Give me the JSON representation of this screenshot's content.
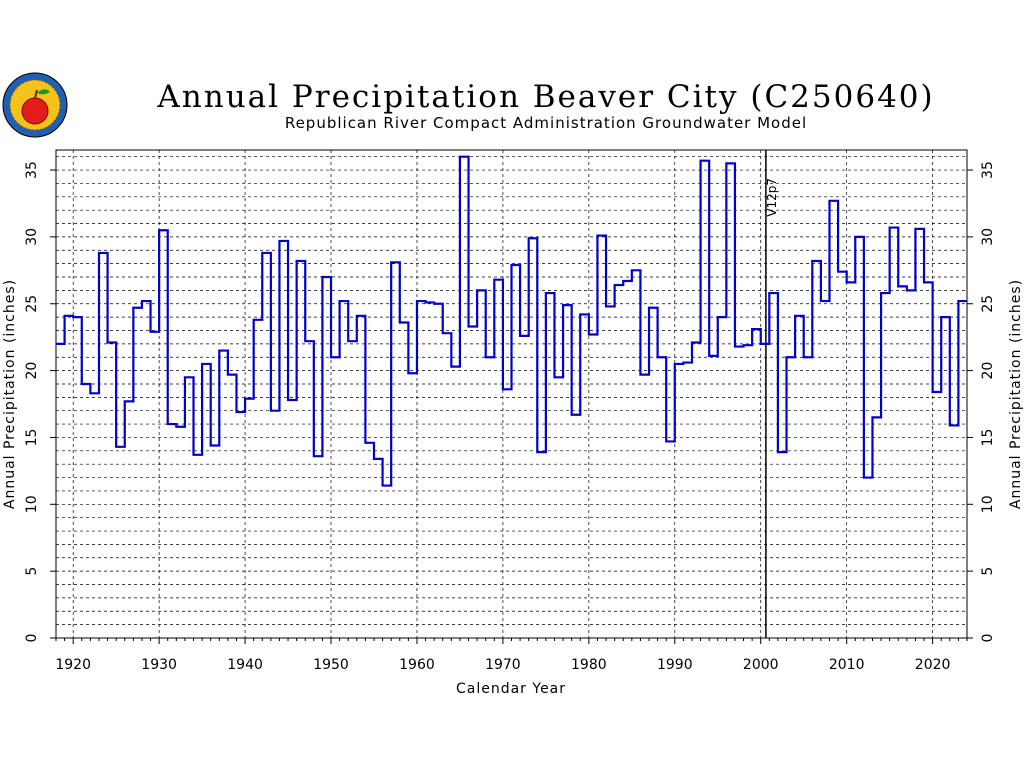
{
  "chart_data": {
    "type": "line",
    "step": true,
    "title": "Annual Precipitation Beaver City (C250640)",
    "subtitle": "Republican River Compact Administration Groundwater Model",
    "xlabel": "Calendar Year",
    "ylabel": "Annual Precipitation (inches)",
    "xlim": [
      1918,
      2024
    ],
    "ylim": [
      0,
      36.5
    ],
    "x_ticks": [
      "1920",
      "1930",
      "1940",
      "1950",
      "1960",
      "1970",
      "1980",
      "1990",
      "2000",
      "2010",
      "2020"
    ],
    "y_ticks": [
      "0",
      "5",
      "10",
      "15",
      "20",
      "25",
      "30",
      "35"
    ],
    "grid": true,
    "annotation": {
      "label": "V12p7",
      "x": 2000.6
    },
    "line_color": "#0000cc",
    "series": [
      {
        "x": [
          1918,
          1919,
          1920,
          1921,
          1922,
          1923,
          1924,
          1925,
          1926,
          1927,
          1928,
          1929,
          1930,
          1931,
          1932,
          1933,
          1934,
          1935,
          1936,
          1937,
          1938,
          1939,
          1940,
          1941,
          1942,
          1943,
          1944,
          1945,
          1946,
          1947,
          1948,
          1949,
          1950,
          1951,
          1952,
          1953,
          1954,
          1955,
          1956,
          1957,
          1958,
          1959,
          1960,
          1961,
          1962,
          1963,
          1964,
          1965,
          1966,
          1967,
          1968,
          1969,
          1970,
          1971,
          1972,
          1973,
          1974,
          1975,
          1976,
          1977,
          1978,
          1979,
          1980,
          1981,
          1982,
          1983,
          1984,
          1985,
          1986,
          1987,
          1988,
          1989,
          1990,
          1991,
          1992,
          1993,
          1994,
          1995,
          1996,
          1997,
          1998,
          1999,
          2000,
          2001,
          2002,
          2003,
          2004,
          2005,
          2006,
          2007,
          2008,
          2009,
          2010,
          2011,
          2012,
          2013,
          2014,
          2015,
          2016,
          2017,
          2018,
          2019,
          2020,
          2021,
          2022,
          2023
        ],
        "y": [
          22.0,
          24.1,
          24.0,
          19.0,
          18.3,
          28.8,
          22.1,
          14.3,
          17.7,
          24.7,
          25.2,
          22.9,
          30.5,
          16.0,
          15.8,
          19.5,
          13.7,
          20.5,
          14.4,
          21.5,
          19.7,
          16.9,
          17.9,
          23.8,
          28.8,
          17.0,
          29.7,
          17.8,
          28.2,
          22.2,
          13.6,
          27.0,
          21.0,
          25.2,
          22.2,
          24.1,
          14.6,
          13.4,
          11.4,
          28.1,
          23.6,
          19.8,
          25.2,
          25.1,
          25.0,
          22.8,
          20.3,
          36.0,
          23.3,
          26.0,
          21.0,
          26.8,
          18.6,
          27.9,
          22.6,
          29.9,
          13.9,
          25.8,
          19.5,
          24.9,
          16.7,
          24.2,
          22.7,
          30.1,
          24.8,
          26.4,
          26.7,
          27.5,
          19.7,
          24.7,
          21.0,
          14.7,
          20.5,
          20.6,
          22.1,
          35.7,
          21.1,
          24.0,
          35.5,
          21.8,
          21.9,
          23.1,
          22.0,
          25.8,
          13.9,
          21.0,
          24.1,
          21.0,
          28.2,
          25.2,
          32.7,
          27.4,
          26.6,
          30.0,
          12.0,
          16.5,
          25.8,
          30.7,
          26.3,
          26.0,
          30.6,
          26.6,
          18.4,
          24.0,
          15.9,
          25.2
        ]
      }
    ]
  }
}
